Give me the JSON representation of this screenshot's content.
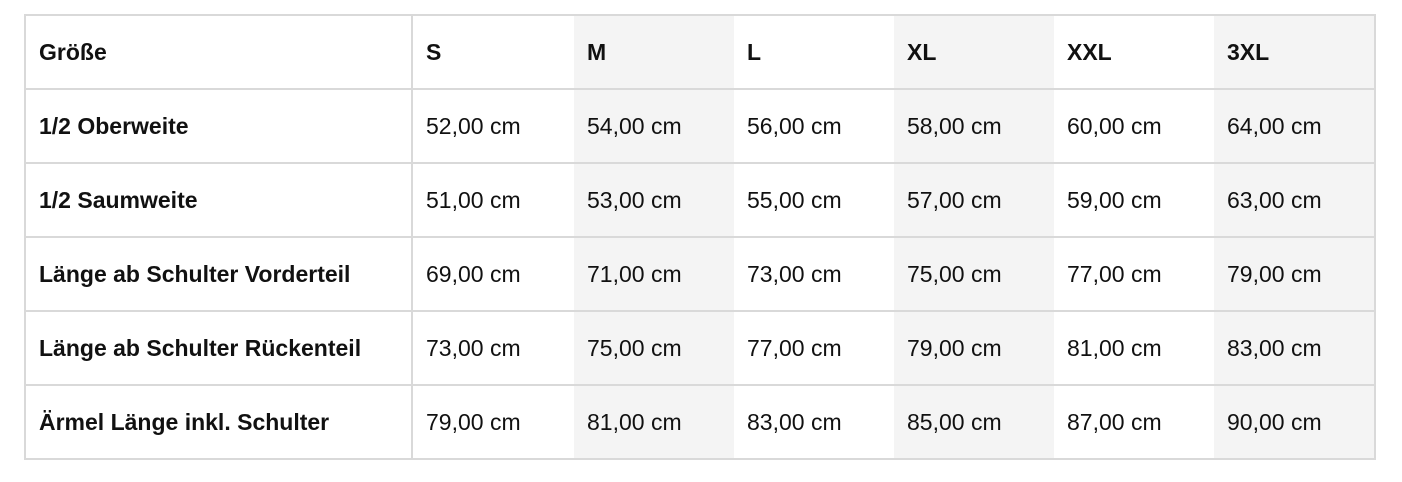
{
  "table": {
    "header": [
      "Größe",
      "S",
      "M",
      "L",
      "XL",
      "XXL",
      "3XL"
    ],
    "rows": [
      [
        "1/2 Oberweite",
        "52,00 cm",
        "54,00 cm",
        "56,00 cm",
        "58,00 cm",
        "60,00 cm",
        "64,00 cm"
      ],
      [
        "1/2 Saumweite",
        "51,00 cm",
        "53,00 cm",
        "55,00 cm",
        "57,00 cm",
        "59,00 cm",
        "63,00 cm"
      ],
      [
        "Länge ab Schulter Vorderteil",
        "69,00 cm",
        "71,00 cm",
        "73,00 cm",
        "75,00 cm",
        "77,00 cm",
        "79,00 cm"
      ],
      [
        "Länge ab Schulter Rückenteil",
        "73,00 cm",
        "75,00 cm",
        "77,00 cm",
        "79,00 cm",
        "81,00 cm",
        "83,00 cm"
      ],
      [
        "Ärmel Länge inkl. Schulter",
        "79,00 cm",
        "81,00 cm",
        "83,00 cm",
        "85,00 cm",
        "87,00 cm",
        "90,00 cm"
      ]
    ]
  }
}
